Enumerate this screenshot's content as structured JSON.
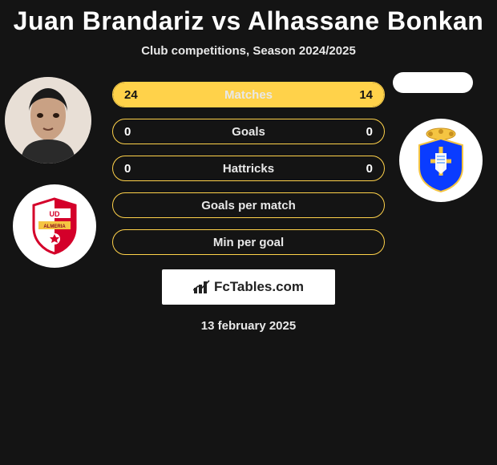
{
  "title": "Juan Brandariz vs Alhassane Bonkan",
  "subtitle": "Club competitions, Season 2024/2025",
  "date": "13 february 2025",
  "logo_text": "FcTables.com",
  "colors": {
    "background": "#141414",
    "accent": "#ffd24a",
    "text": "#ffffff",
    "subtext": "#e8e8e8"
  },
  "left_player": {
    "name": "Juan Brandariz",
    "club": "UD Almería",
    "club_colors": {
      "primary": "#d4002a",
      "secondary": "#ffffff",
      "accent": "#f5c542"
    }
  },
  "right_player": {
    "name": "Alhassane Bonkan",
    "club": "Real Oviedo",
    "club_colors": {
      "primary": "#0a3cff",
      "secondary": "#ffffff",
      "accent": "#f5c542"
    }
  },
  "rows": [
    {
      "label": "Matches",
      "left": "24",
      "right": "14",
      "left_fill_pct": 63,
      "right_fill_pct": 37,
      "left_dark_text": true,
      "right_dark_text": true
    },
    {
      "label": "Goals",
      "left": "0",
      "right": "0",
      "left_fill_pct": 0,
      "right_fill_pct": 0
    },
    {
      "label": "Hattricks",
      "left": "0",
      "right": "0",
      "left_fill_pct": 0,
      "right_fill_pct": 0
    },
    {
      "label": "Goals per match",
      "left": "",
      "right": "",
      "left_fill_pct": 0,
      "right_fill_pct": 0
    },
    {
      "label": "Min per goal",
      "left": "",
      "right": "",
      "left_fill_pct": 0,
      "right_fill_pct": 0
    }
  ]
}
